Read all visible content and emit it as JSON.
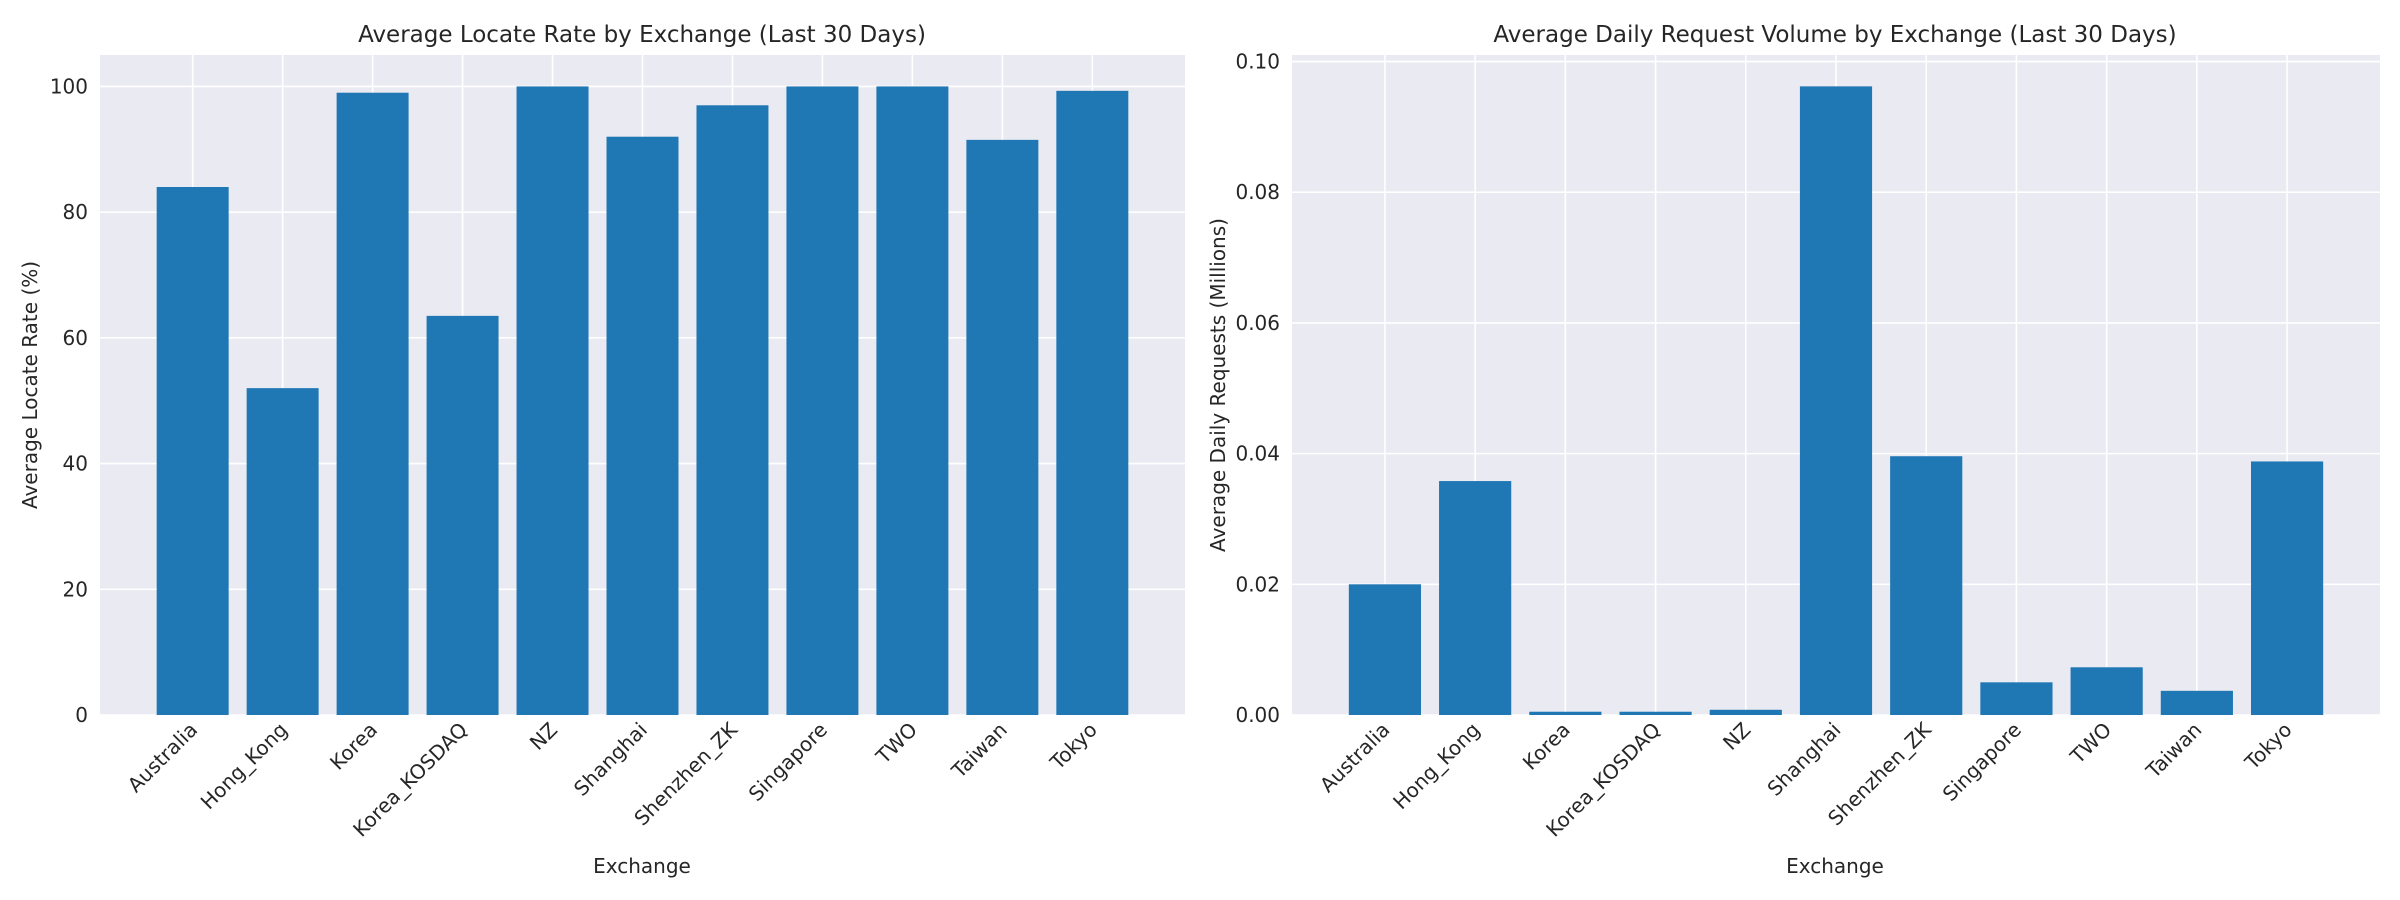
{
  "chart_data": [
    {
      "type": "bar",
      "title": "Average Locate Rate by Exchange (Last 30 Days)",
      "xlabel": "Exchange",
      "ylabel": "Average Locate Rate (%)",
      "categories": [
        "Australia",
        "Hong_Kong",
        "Korea",
        "Korea_KOSDAQ",
        "NZ",
        "Shanghai",
        "Shenzhen_ZK",
        "Singapore",
        "TWO",
        "Taiwan",
        "Tokyo"
      ],
      "values": [
        84.0,
        52.0,
        99.0,
        63.5,
        100.0,
        92.0,
        97.0,
        100.0,
        100.0,
        91.5,
        99.3
      ],
      "ylim": [
        0,
        105
      ],
      "yticks": [
        0,
        20,
        40,
        60,
        80,
        100
      ],
      "ytick_labels": [
        "0",
        "20",
        "40",
        "60",
        "80",
        "100"
      ],
      "color": "#1f77b4",
      "grid": true
    },
    {
      "type": "bar",
      "title": "Average Daily Request Volume by Exchange (Last 30 Days)",
      "xlabel": "Exchange",
      "ylabel": "Average Daily Requests (Millions)",
      "categories": [
        "Australia",
        "Hong_Kong",
        "Korea",
        "Korea_KOSDAQ",
        "NZ",
        "Shanghai",
        "Shenzhen_ZK",
        "Singapore",
        "TWO",
        "Taiwan",
        "Tokyo"
      ],
      "values": [
        0.02,
        0.0358,
        0.0005,
        0.0005,
        0.0008,
        0.0962,
        0.0396,
        0.005,
        0.0073,
        0.0037,
        0.0388
      ],
      "ylim": [
        0,
        0.101
      ],
      "yticks": [
        0,
        0.02,
        0.04,
        0.06,
        0.08,
        0.1
      ],
      "ytick_labels": [
        "0.00",
        "0.02",
        "0.04",
        "0.06",
        "0.08",
        "0.10"
      ],
      "color": "#1f77b4",
      "grid": true
    }
  ],
  "colors": {
    "plot_bg": "#eaeaf2",
    "grid": "#ffffff",
    "bar": "#1f77b4",
    "text": "#262626"
  }
}
